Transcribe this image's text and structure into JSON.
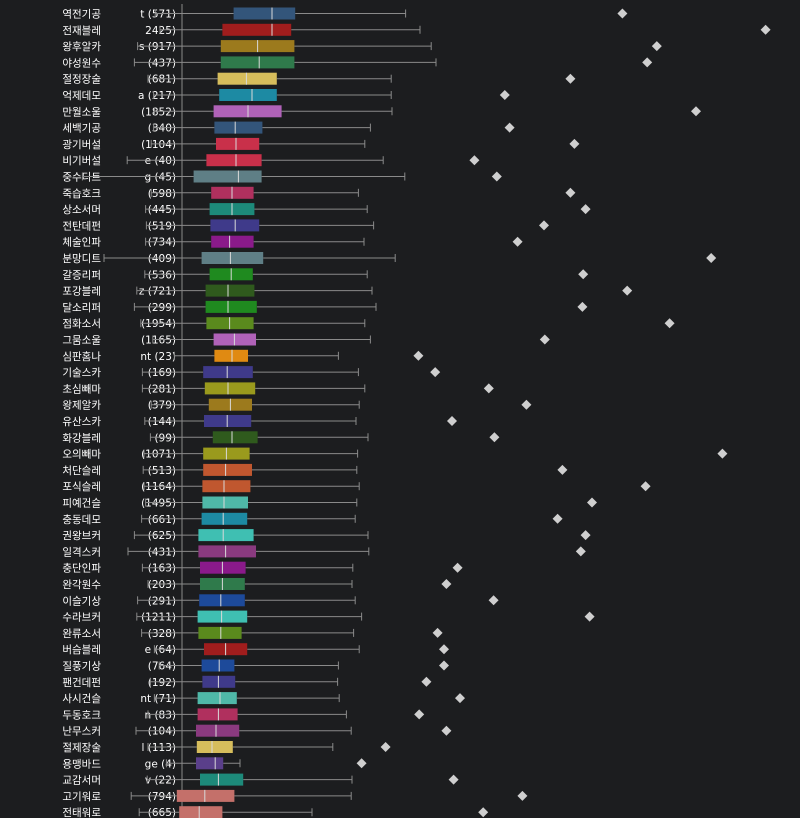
{
  "chart_data": {
    "type": "box",
    "grid": false,
    "rows": [
      {
        "name": "역전기공",
        "count_label": "t (571)",
        "color": "#33557a",
        "wmin": 0.194,
        "q1": 0.292,
        "med": 0.34,
        "q3": 0.369,
        "wmax": 0.507,
        "outlier": 0.778
      },
      {
        "name": "전재블레",
        "count_label": "2425)",
        "color": "#a01d1d",
        "wmin": 0.2,
        "q1": 0.278,
        "med": 0.34,
        "q3": 0.364,
        "wmax": 0.525,
        "outlier": 0.957
      },
      {
        "name": "왕후알카",
        "count_label": "s (917)",
        "color": "#9c7a1d",
        "wmin": 0.172,
        "q1": 0.276,
        "med": 0.322,
        "q3": 0.368,
        "wmax": 0.539,
        "outlier": 0.821
      },
      {
        "name": "야성원수",
        "count_label": "(437)",
        "color": "#2f7a4b",
        "wmin": 0.168,
        "q1": 0.276,
        "med": 0.324,
        "q3": 0.368,
        "wmax": 0.545,
        "outlier": 0.809
      },
      {
        "name": "절정장술",
        "count_label": "(681)",
        "color": "#d6bd5c",
        "wmin": 0.185,
        "q1": 0.272,
        "med": 0.308,
        "q3": 0.346,
        "wmax": 0.489,
        "outlier": 0.713
      },
      {
        "name": "억제데모",
        "count_label": "a (217)",
        "color": "#1d8aa3",
        "wmin": 0.192,
        "q1": 0.274,
        "med": 0.315,
        "q3": 0.346,
        "wmax": 0.489,
        "outlier": 0.631
      },
      {
        "name": "만월소울",
        "count_label": "(1852)",
        "color": "#b062b8",
        "wmin": 0.193,
        "q1": 0.267,
        "med": 0.31,
        "q3": 0.352,
        "wmax": 0.49,
        "outlier": 0.87
      },
      {
        "name": "세백기공",
        "count_label": "(340)",
        "color": "#33557a",
        "wmin": 0.192,
        "q1": 0.268,
        "med": 0.294,
        "q3": 0.328,
        "wmax": 0.463,
        "outlier": 0.637
      },
      {
        "name": "광기버설",
        "count_label": "(1104)",
        "color": "#c9304a",
        "wmin": 0.189,
        "q1": 0.27,
        "med": 0.295,
        "q3": 0.324,
        "wmax": 0.456,
        "outlier": 0.718
      },
      {
        "name": "비기버설",
        "count_label": "e (40)",
        "color": "#c9304a",
        "wmin": 0.159,
        "q1": 0.258,
        "med": 0.295,
        "q3": 0.327,
        "wmax": 0.479,
        "outlier": 0.593
      },
      {
        "name": "중수디트",
        "count_label": "g (45)",
        "color": "#5f7f86",
        "wmin": 0.103,
        "q1": 0.242,
        "med": 0.298,
        "q3": 0.327,
        "wmax": 0.506,
        "outlier": 0.621
      },
      {
        "name": "죽습호크",
        "count_label": "(598)",
        "color": "#b0305e",
        "wmin": 0.189,
        "q1": 0.264,
        "med": 0.29,
        "q3": 0.317,
        "wmax": 0.448,
        "outlier": 0.713
      },
      {
        "name": "상소서머",
        "count_label": "(445)",
        "color": "#1d8a7a",
        "wmin": 0.182,
        "q1": 0.262,
        "med": 0.29,
        "q3": 0.318,
        "wmax": 0.459,
        "outlier": 0.732
      },
      {
        "name": "전탄데펀",
        "count_label": "(519)",
        "color": "#3f3a8a",
        "wmin": 0.183,
        "q1": 0.263,
        "med": 0.294,
        "q3": 0.324,
        "wmax": 0.467,
        "outlier": 0.68
      },
      {
        "name": "체술인파",
        "count_label": "(734)",
        "color": "#8a1a8a",
        "wmin": 0.182,
        "q1": 0.264,
        "med": 0.287,
        "q3": 0.317,
        "wmax": 0.455,
        "outlier": 0.647
      },
      {
        "name": "분망디트",
        "count_label": "(409)",
        "color": "#5f7f86",
        "wmin": 0.13,
        "q1": 0.252,
        "med": 0.288,
        "q3": 0.329,
        "wmax": 0.494,
        "outlier": 0.889
      },
      {
        "name": "갈증리퍼",
        "count_label": "(536)",
        "color": "#1f8a1f",
        "wmin": 0.181,
        "q1": 0.262,
        "med": 0.289,
        "q3": 0.316,
        "wmax": 0.459,
        "outlier": 0.729
      },
      {
        "name": "포강블레",
        "count_label": "z (721)",
        "color": "#2f5a1d",
        "wmin": 0.171,
        "q1": 0.257,
        "med": 0.285,
        "q3": 0.318,
        "wmax": 0.465,
        "outlier": 0.784
      },
      {
        "name": "달소리퍼",
        "count_label": "(299)",
        "color": "#1f8a1f",
        "wmin": 0.168,
        "q1": 0.257,
        "med": 0.285,
        "q3": 0.321,
        "wmax": 0.47,
        "outlier": 0.728
      },
      {
        "name": "점화소서",
        "count_label": "(1954)",
        "color": "#5a8a1d",
        "wmin": 0.176,
        "q1": 0.258,
        "med": 0.287,
        "q3": 0.317,
        "wmax": 0.456,
        "outlier": 0.837
      },
      {
        "name": "그뭄소울",
        "count_label": "(1165)",
        "color": "#b062b8",
        "wmin": 0.191,
        "q1": 0.267,
        "med": 0.293,
        "q3": 0.32,
        "wmax": 0.463,
        "outlier": 0.681
      },
      {
        "name": "심판홈나",
        "count_label": "nt (23)",
        "color": "#e08a12",
        "wmin": 0.218,
        "q1": 0.268,
        "med": 0.29,
        "q3": 0.31,
        "wmax": 0.423,
        "outlier": 0.523
      },
      {
        "name": "기술스카",
        "count_label": "(169)",
        "color": "#3f3a8a",
        "wmin": 0.178,
        "q1": 0.254,
        "med": 0.284,
        "q3": 0.316,
        "wmax": 0.448,
        "outlier": 0.544
      },
      {
        "name": "초심빼마",
        "count_label": "(281)",
        "color": "#9a9a1d",
        "wmin": 0.178,
        "q1": 0.256,
        "med": 0.285,
        "q3": 0.319,
        "wmax": 0.456,
        "outlier": 0.611
      },
      {
        "name": "왕제알카",
        "count_label": "(379)",
        "color": "#9c7a1d",
        "wmin": 0.189,
        "q1": 0.261,
        "med": 0.288,
        "q3": 0.315,
        "wmax": 0.449,
        "outlier": 0.658
      },
      {
        "name": "유산스카",
        "count_label": "(144)",
        "color": "#3f3a8a",
        "wmin": 0.181,
        "q1": 0.255,
        "med": 0.284,
        "q3": 0.314,
        "wmax": 0.445,
        "outlier": 0.565
      },
      {
        "name": "화강블레",
        "count_label": "(99)",
        "color": "#2f5a1d",
        "wmin": 0.188,
        "q1": 0.266,
        "med": 0.29,
        "q3": 0.322,
        "wmax": 0.46,
        "outlier": 0.618
      },
      {
        "name": "오의빼마",
        "count_label": "(1071)",
        "color": "#9a9a1d",
        "wmin": 0.18,
        "q1": 0.254,
        "med": 0.283,
        "q3": 0.312,
        "wmax": 0.447,
        "outlier": 0.903
      },
      {
        "name": "처단슬레",
        "count_label": "(513)",
        "color": "#c0572f",
        "wmin": 0.179,
        "q1": 0.254,
        "med": 0.282,
        "q3": 0.315,
        "wmax": 0.446,
        "outlier": 0.703
      },
      {
        "name": "포식슬레",
        "count_label": "(1164)",
        "color": "#c0572f",
        "wmin": 0.18,
        "q1": 0.253,
        "med": 0.28,
        "q3": 0.313,
        "wmax": 0.449,
        "outlier": 0.807
      },
      {
        "name": "피예건슬",
        "count_label": "(1495)",
        "color": "#4fb8a8",
        "wmin": 0.182,
        "q1": 0.253,
        "med": 0.28,
        "q3": 0.31,
        "wmax": 0.446,
        "outlier": 0.74
      },
      {
        "name": "충동데모",
        "count_label": "(661)",
        "color": "#1d8aa3",
        "wmin": 0.177,
        "q1": 0.252,
        "med": 0.279,
        "q3": 0.309,
        "wmax": 0.444,
        "outlier": 0.697
      },
      {
        "name": "권왕브커",
        "count_label": "(625)",
        "color": "#3fbfb2",
        "wmin": 0.168,
        "q1": 0.248,
        "med": 0.279,
        "q3": 0.317,
        "wmax": 0.46,
        "outlier": 0.732
      },
      {
        "name": "일격스커",
        "count_label": "(431)",
        "color": "#8a3a7f",
        "wmin": 0.16,
        "q1": 0.248,
        "med": 0.282,
        "q3": 0.32,
        "wmax": 0.461,
        "outlier": 0.726
      },
      {
        "name": "충단인파",
        "count_label": "(163)",
        "color": "#8a1a8a",
        "wmin": 0.178,
        "q1": 0.25,
        "med": 0.278,
        "q3": 0.307,
        "wmax": 0.441,
        "outlier": 0.572
      },
      {
        "name": "완각원수",
        "count_label": "(203)",
        "color": "#2f7a4b",
        "wmin": 0.185,
        "q1": 0.25,
        "med": 0.278,
        "q3": 0.306,
        "wmax": 0.44,
        "outlier": 0.558
      },
      {
        "name": "이슬기상",
        "count_label": "(291)",
        "color": "#1d4a9a",
        "wmin": 0.172,
        "q1": 0.249,
        "med": 0.276,
        "q3": 0.306,
        "wmax": 0.444,
        "outlier": 0.617
      },
      {
        "name": "수라브커",
        "count_label": "(1211)",
        "color": "#3fbfb2",
        "wmin": 0.171,
        "q1": 0.247,
        "med": 0.277,
        "q3": 0.309,
        "wmax": 0.452,
        "outlier": 0.737
      },
      {
        "name": "완류소서",
        "count_label": "(328)",
        "color": "#5a8a1d",
        "wmin": 0.177,
        "q1": 0.248,
        "med": 0.276,
        "q3": 0.302,
        "wmax": 0.442,
        "outlier": 0.547
      },
      {
        "name": "버슴블레",
        "count_label": "e (64)",
        "color": "#a01d1d",
        "wmin": 0.193,
        "q1": 0.255,
        "med": 0.282,
        "q3": 0.309,
        "wmax": 0.449,
        "outlier": 0.555
      },
      {
        "name": "질풍기상",
        "count_label": "(764)",
        "color": "#1d4a9a",
        "wmin": 0.199,
        "q1": 0.252,
        "med": 0.274,
        "q3": 0.293,
        "wmax": 0.423,
        "outlier": 0.555
      },
      {
        "name": "팬건데펀",
        "count_label": "(192)",
        "color": "#3f3a8a",
        "wmin": 0.188,
        "q1": 0.253,
        "med": 0.273,
        "q3": 0.294,
        "wmax": 0.422,
        "outlier": 0.533
      },
      {
        "name": "사시건슬",
        "count_label": "nt (71)",
        "color": "#4fb8a8",
        "wmin": 0.193,
        "q1": 0.247,
        "med": 0.275,
        "q3": 0.296,
        "wmax": 0.424,
        "outlier": 0.575
      },
      {
        "name": "두동호크",
        "count_label": "n (83)",
        "color": "#b0305e",
        "wmin": 0.185,
        "q1": 0.247,
        "med": 0.273,
        "q3": 0.297,
        "wmax": 0.433,
        "outlier": 0.524
      },
      {
        "name": "난무스커",
        "count_label": "(104)",
        "color": "#8a3a7f",
        "wmin": 0.17,
        "q1": 0.245,
        "med": 0.27,
        "q3": 0.299,
        "wmax": 0.439,
        "outlier": 0.558
      },
      {
        "name": "절제장술",
        "count_label": "l (113)",
        "color": "#d6bd5c",
        "wmin": 0.185,
        "q1": 0.246,
        "med": 0.265,
        "q3": 0.291,
        "wmax": 0.416,
        "outlier": 0.482
      },
      {
        "name": "용맹바드",
        "count_label": "ge (4)",
        "color": "#5a3f8a",
        "wmin": 0.208,
        "q1": 0.245,
        "med": 0.269,
        "q3": 0.279,
        "wmax": 0.3,
        "outlier": 0.452
      },
      {
        "name": "교감서머",
        "count_label": "v (22)",
        "color": "#1d8a7a",
        "wmin": 0.184,
        "q1": 0.25,
        "med": 0.273,
        "q3": 0.304,
        "wmax": 0.44,
        "outlier": 0.567
      },
      {
        "name": "고기워로",
        "count_label": "(794)",
        "color": "#c4706a",
        "wmin": 0.164,
        "q1": 0.221,
        "med": 0.256,
        "q3": 0.293,
        "wmax": 0.439,
        "outlier": 0.653
      },
      {
        "name": "전태워로",
        "count_label": "(665)",
        "color": "#c4706a",
        "wmin": 0.174,
        "q1": 0.224,
        "med": 0.249,
        "q3": 0.278,
        "wmax": 0.39,
        "outlier": 0.604
      }
    ]
  }
}
